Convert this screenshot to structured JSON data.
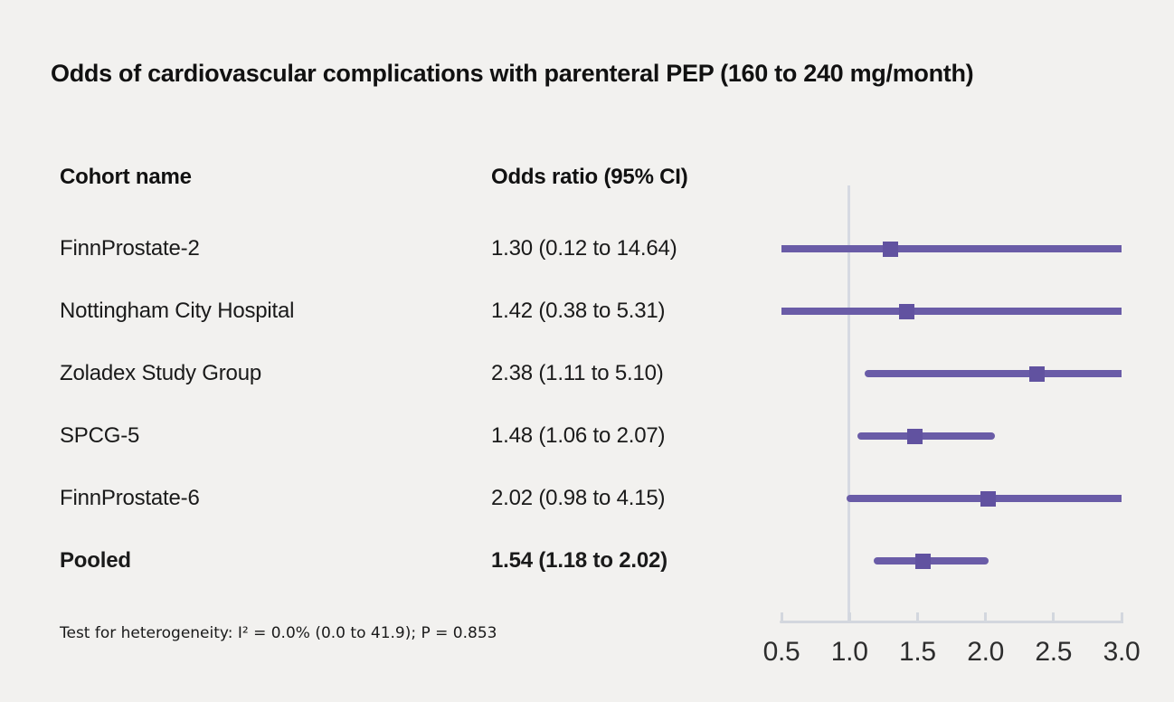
{
  "page": {
    "background": "#f2f1ef"
  },
  "chart_data": {
    "type": "forest",
    "title": "Odds of cardiovascular complications with parenteral PEP (160 to 240 mg/month)",
    "columns": [
      "Cohort name",
      "Odds ratio (95% CI)"
    ],
    "x_axis": {
      "scale": "linear",
      "min": 0.5,
      "max": 3.0,
      "ticks": [
        0.5,
        1.0,
        1.5,
        2.0,
        2.5,
        3.0
      ],
      "tick_labels": [
        "0.5",
        "1.0",
        "1.5",
        "2.0",
        "2.5",
        "3.0"
      ],
      "reference_line": 1.0
    },
    "rows": [
      {
        "label": "FinnProstate-2",
        "or": 1.3,
        "ci_low": 0.12,
        "ci_high": 14.64,
        "display": "1.30 (0.12 to 14.64)",
        "pooled": false
      },
      {
        "label": "Nottingham City Hospital",
        "or": 1.42,
        "ci_low": 0.38,
        "ci_high": 5.31,
        "display": "1.42 (0.38 to 5.31)",
        "pooled": false
      },
      {
        "label": "Zoladex Study Group",
        "or": 2.38,
        "ci_low": 1.11,
        "ci_high": 5.1,
        "display": "2.38 (1.11 to 5.10)",
        "pooled": false
      },
      {
        "label": "SPCG-5",
        "or": 1.48,
        "ci_low": 1.06,
        "ci_high": 2.07,
        "display": "1.48 (1.06 to 2.07)",
        "pooled": false
      },
      {
        "label": "FinnProstate-6",
        "or": 2.02,
        "ci_low": 0.98,
        "ci_high": 4.15,
        "display": "2.02 (0.98 to 4.15)",
        "pooled": false
      },
      {
        "label": "Pooled",
        "or": 1.54,
        "ci_low": 1.18,
        "ci_high": 2.02,
        "display": "1.54 (1.18 to 2.02)",
        "pooled": true
      }
    ],
    "footnote": "Test for heterogeneity: I² = 0.0% (0.0 to 41.9); P = 0.853",
    "colors": {
      "ci_line": "#6A5CA7",
      "marker": "#6152A0",
      "reference_line": "#D6D9E2",
      "axis": "#D3D7DE",
      "text": "#111111",
      "background": "#f2f1ef"
    },
    "legend": null,
    "grid": false
  }
}
